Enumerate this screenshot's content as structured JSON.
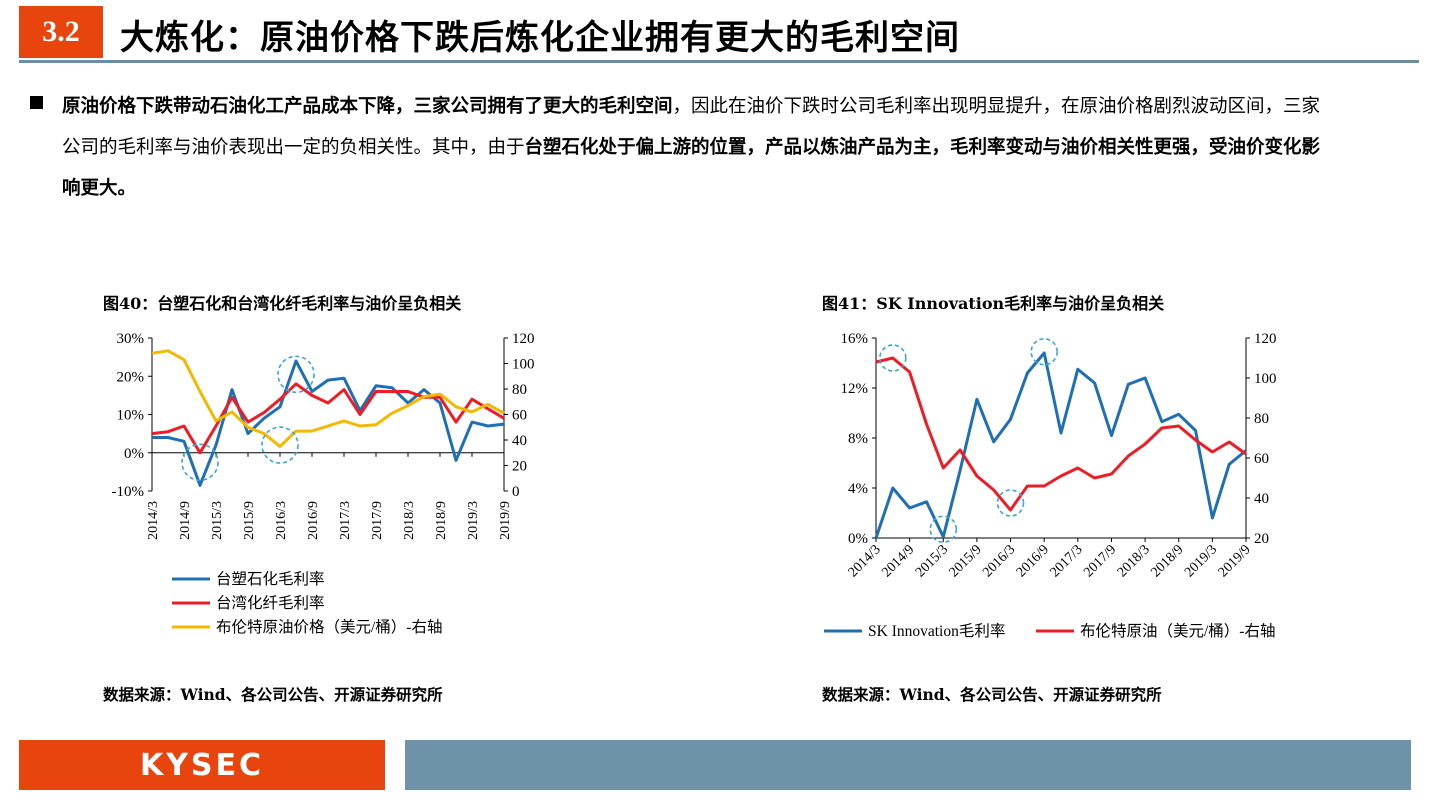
{
  "header": {
    "section_number": "3.2",
    "title": "大炼化：原油价格下跌后炼化企业拥有更大的毛利空间"
  },
  "body": {
    "seg1": "原油价格下跌带动石油化工产品成本下降，三家公司拥有了更大的毛利空间",
    "seg2": "，因此在油价下跌时公司毛利率出现明显提升，在原油价格剧烈波动区间，三家公司的毛利率与油价表现出一定的负相关性。其中，由于",
    "seg3": "台塑石化处于偏上游的位置，产品以炼油产品为主，毛利率变动与油价相关性更强，受油价变化影响更大。"
  },
  "figures": [
    {
      "title": "图40：台塑石化和台湾化纤毛利率与油价呈负相关",
      "source": "数据来源：Wind、各公司公告、开源证券研究所"
    },
    {
      "title": "图41：SK Innovation毛利率与油价呈负相关",
      "source": "数据来源：Wind、各公司公告、开源证券研究所"
    }
  ],
  "footer": {
    "logo": "KYSEC"
  },
  "chart_data": [
    {
      "type": "line",
      "x": [
        "2014/3",
        "2014/6",
        "2014/9",
        "2014/12",
        "2015/3",
        "2015/6",
        "2015/9",
        "2015/12",
        "2016/3",
        "2016/6",
        "2016/9",
        "2016/12",
        "2017/3",
        "2017/6",
        "2017/9",
        "2017/12",
        "2018/3",
        "2018/6",
        "2018/9",
        "2018/12",
        "2019/3",
        "2019/6",
        "2019/9"
      ],
      "x_tick_labels": [
        "2014/3",
        "2014/9",
        "2015/3",
        "2015/9",
        "2016/3",
        "2016/9",
        "2017/3",
        "2017/9",
        "2018/3",
        "2018/9",
        "2019/3",
        "2019/9"
      ],
      "y_left_ticks": [
        "30%",
        "20%",
        "10%",
        "0%",
        "-10%"
      ],
      "y_left_range": [
        -10,
        30
      ],
      "y_right_ticks": [
        "120",
        "100",
        "80",
        "60",
        "40",
        "20",
        "0"
      ],
      "y_right_range": [
        0,
        120
      ],
      "legend_position": "bottom",
      "series": [
        {
          "name": "台塑石化毛利率",
          "axis": "left",
          "color": "#1f6fb4",
          "values": [
            4,
            4,
            3,
            -8.5,
            2,
            16.5,
            5,
            9,
            12,
            24,
            16,
            19,
            19.5,
            11,
            17.5,
            17,
            13,
            16.5,
            13,
            -2,
            8,
            7,
            7.5
          ]
        },
        {
          "name": "台湾化纤毛利率",
          "axis": "left",
          "color": "#ee1c25",
          "values": [
            5,
            5.5,
            7,
            0,
            7,
            14.5,
            8,
            10.5,
            14,
            18,
            15,
            13,
            16.5,
            10,
            16,
            16,
            16,
            14.5,
            14.5,
            8,
            14,
            11.5,
            9
          ]
        },
        {
          "name": "布伦特原油价格（美元/桶）-右轴",
          "axis": "right",
          "color": "#f5b800",
          "values": [
            108,
            110,
            103,
            78,
            55,
            62,
            50,
            45,
            35,
            47,
            47,
            51,
            55,
            51,
            52,
            61,
            67,
            74,
            76,
            66,
            62,
            68,
            61
          ]
        }
      ],
      "highlight_circles": [
        {
          "x": "2014/12",
          "axis": "left",
          "y": -2.5
        },
        {
          "x": "2016/3",
          "axis": "left",
          "y": 2
        },
        {
          "x": "2016/6",
          "axis": "left",
          "y": 20.5
        }
      ]
    },
    {
      "type": "line",
      "x": [
        "2014/3",
        "2014/6",
        "2014/9",
        "2014/12",
        "2015/3",
        "2015/6",
        "2015/9",
        "2015/12",
        "2016/3",
        "2016/6",
        "2016/9",
        "2016/12",
        "2017/3",
        "2017/6",
        "2017/9",
        "2017/12",
        "2018/3",
        "2018/6",
        "2018/9",
        "2018/12",
        "2019/3",
        "2019/6",
        "2019/9"
      ],
      "x_tick_labels": [
        "2014/3",
        "2014/9",
        "2015/3",
        "2015/9",
        "2016/3",
        "2016/9",
        "2017/3",
        "2017/9",
        "2018/3",
        "2018/9",
        "2019/3",
        "2019/9"
      ],
      "y_left_ticks": [
        "16%",
        "12%",
        "8%",
        "4%",
        "0%"
      ],
      "y_left_range": [
        0,
        16
      ],
      "y_right_ticks": [
        "120",
        "100",
        "80",
        "60",
        "40",
        "20"
      ],
      "y_right_range": [
        20,
        120
      ],
      "legend_position": "bottom",
      "series": [
        {
          "name": "SK Innovation毛利率",
          "axis": "left",
          "color": "#1f6fb4",
          "values": [
            0,
            4,
            2.4,
            2.9,
            0.1,
            5.4,
            11.1,
            7.7,
            9.5,
            13.2,
            14.8,
            8.4,
            13.5,
            12.4,
            8.2,
            12.3,
            12.8,
            9.3,
            9.9,
            8.6,
            1.6,
            5.9,
            7
          ]
        },
        {
          "name": "布伦特原油（美元/桶）-右轴",
          "axis": "right",
          "color": "#ee1c25",
          "values": [
            108,
            110,
            103,
            77,
            55,
            64,
            51,
            44,
            34,
            46,
            46,
            51,
            55,
            50,
            52,
            61,
            67,
            75,
            76,
            69,
            63,
            68,
            62
          ]
        }
      ],
      "highlight_circles": [
        {
          "x": "2014/6",
          "axis": "left",
          "y": 14.4
        },
        {
          "x": "2015/3",
          "axis": "left",
          "y": 0.7
        },
        {
          "x": "2016/3",
          "axis": "left",
          "y": 2.8
        },
        {
          "x": "2016/9",
          "axis": "left",
          "y": 14.9
        }
      ]
    }
  ]
}
